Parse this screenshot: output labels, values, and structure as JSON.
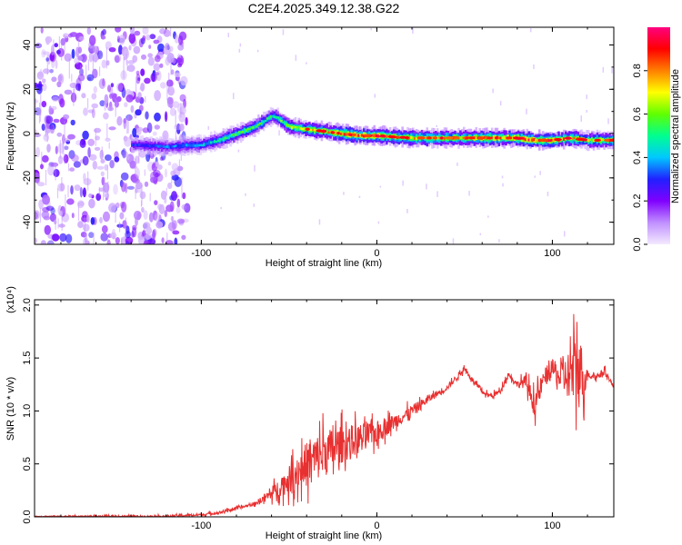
{
  "title": "C2E4.2025.349.12.38.G22",
  "chart_data": [
    {
      "type": "heatmap",
      "name": "spectrogram",
      "xlabel": "Height of straight line (km)",
      "ylabel": "Frequency (Hz)",
      "xlim": [
        -195,
        135
      ],
      "ylim": [
        -50,
        48
      ],
      "x_ticks": [
        -100,
        0,
        100
      ],
      "x_tick_labels": [
        "-100",
        "0",
        "100"
      ],
      "y_ticks": [
        -40,
        -20,
        0,
        20,
        40
      ],
      "y_tick_labels": [
        "-40",
        "-20",
        "0",
        "20",
        "40"
      ],
      "colorbar": {
        "label": "Normalized spectral amplitude",
        "range": [
          0,
          1
        ],
        "ticks": [
          0.0,
          0.2,
          0.4,
          0.6,
          0.8
        ],
        "tick_labels": [
          "0.0",
          "0.2",
          "0.4",
          "0.6",
          "0.8"
        ],
        "colormap": [
          "#f4eaff",
          "#c090ff",
          "#8000ff",
          "#2020ff",
          "#00c8ff",
          "#00ff90",
          "#60ff00",
          "#ffff00",
          "#ff8000",
          "#ff0000",
          "#ff0080"
        ]
      },
      "ridge": {
        "x": [
          -140,
          -120,
          -100,
          -90,
          -80,
          -70,
          -60,
          -57,
          -50,
          -40,
          -30,
          -20,
          -10,
          0,
          20,
          40,
          60,
          80,
          90,
          100,
          110,
          120,
          135
        ],
        "freq_hz": [
          -5,
          -6,
          -5,
          -3,
          0,
          3,
          8,
          7,
          3,
          2,
          1,
          0,
          -1,
          -1,
          -2,
          -2,
          -2,
          -2,
          -3,
          -3,
          -2,
          -3,
          -3
        ],
        "peak_amplitude": [
          0.3,
          0.35,
          0.4,
          0.5,
          0.55,
          0.55,
          0.5,
          0.55,
          0.65,
          0.7,
          0.75,
          0.85,
          0.85,
          0.9,
          0.75,
          0.75,
          0.8,
          0.85,
          0.9,
          0.85,
          0.8,
          0.7,
          0.75
        ]
      },
      "noise_region_x": [
        -195,
        -108
      ]
    },
    {
      "type": "line",
      "name": "snr",
      "xlabel": "Height of straight line (km)",
      "ylabel": "SNR (10 * v/v)",
      "y_multiplier": "(x10⁴)",
      "xlim": [
        -195,
        135
      ],
      "ylim": [
        0,
        2.05
      ],
      "x_ticks": [
        -100,
        0,
        100
      ],
      "x_tick_labels": [
        "-100",
        "0",
        "100"
      ],
      "y_ticks": [
        0.0,
        0.5,
        1.0,
        1.5,
        2.0
      ],
      "y_tick_labels": [
        "0.0",
        "0.5",
        "1.0",
        "1.5",
        "2.0"
      ],
      "color": "#e83030",
      "envelope": {
        "x": [
          -195,
          -120,
          -100,
          -90,
          -80,
          -70,
          -60,
          -50,
          -40,
          -30,
          -20,
          -10,
          0,
          10,
          20,
          30,
          40,
          50,
          55,
          60,
          65,
          70,
          75,
          80,
          85,
          90,
          95,
          100,
          105,
          110,
          115,
          118,
          120,
          125,
          130,
          135
        ],
        "y": [
          0.005,
          0.005,
          0.02,
          0.04,
          0.08,
          0.12,
          0.22,
          0.35,
          0.5,
          0.6,
          0.68,
          0.74,
          0.8,
          0.9,
          1.0,
          1.12,
          1.22,
          1.4,
          1.28,
          1.18,
          1.14,
          1.18,
          1.35,
          1.25,
          1.28,
          1.05,
          1.3,
          1.4,
          1.3,
          1.35,
          1.4,
          1.3,
          1.35,
          1.32,
          1.38,
          1.22
        ]
      },
      "noise_amplitude": {
        "x": [
          -195,
          -70,
          -60,
          -50,
          -40,
          -30,
          -20,
          -10,
          0,
          10,
          20,
          30,
          40,
          60,
          80,
          90,
          100,
          105,
          110,
          115,
          118,
          120,
          135
        ],
        "a": [
          0.006,
          0.02,
          0.08,
          0.18,
          0.3,
          0.32,
          0.25,
          0.2,
          0.15,
          0.1,
          0.08,
          0.05,
          0.04,
          0.03,
          0.04,
          0.15,
          0.12,
          0.2,
          0.35,
          0.55,
          0.3,
          0.05,
          0.03
        ]
      }
    }
  ]
}
